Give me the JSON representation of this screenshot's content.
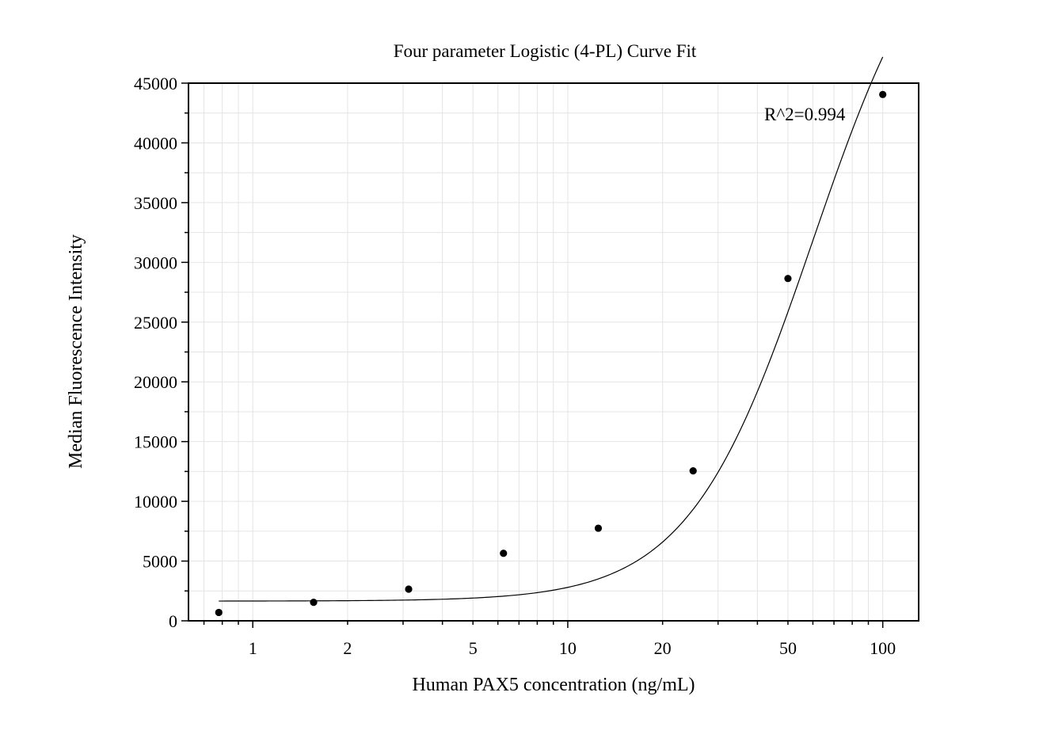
{
  "chart_data": {
    "type": "scatter",
    "title": "Four parameter Logistic (4-PL) Curve Fit",
    "xlabel": "Human PAX5 concentration (ng/mL)",
    "ylabel": "Median Fluorescence Intensity",
    "x_scale": "log",
    "xlim": [
      0.625,
      130
    ],
    "ylim": [
      0,
      45000
    ],
    "x_ticks": [
      1,
      2,
      5,
      10,
      20,
      50,
      100
    ],
    "y_ticks": [
      0,
      5000,
      10000,
      15000,
      20000,
      25000,
      30000,
      35000,
      40000,
      45000
    ],
    "grid": true,
    "annotation": "R^2=0.994",
    "points": {
      "x": [
        0.78,
        1.56,
        3.125,
        6.25,
        12.5,
        25,
        50,
        100
      ],
      "y": [
        700,
        1550,
        2650,
        5650,
        7750,
        12550,
        28650,
        44050
      ]
    },
    "fit_curve": {
      "model": "4PL",
      "a": 1650,
      "b": 2.2,
      "c": 60,
      "d": 62000
    }
  }
}
